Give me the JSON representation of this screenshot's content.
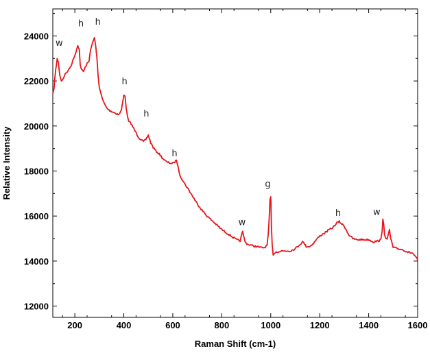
{
  "chart_data": {
    "type": "line",
    "xlabel": "Raman Shift (cm-1)",
    "ylabel": "Relative Intensity",
    "xlim": [
      110,
      1600
    ],
    "ylim": [
      11500,
      25200
    ],
    "xticks": [
      200,
      400,
      600,
      800,
      1000,
      1200,
      1400,
      1600
    ],
    "yticks": [
      12000,
      14000,
      16000,
      18000,
      20000,
      22000,
      24000
    ],
    "grid": false,
    "legend": "none",
    "line_color": "#e8141a",
    "series": [
      {
        "x": [
          110,
          115,
          118,
          122,
          128,
          133,
          138,
          145,
          152,
          160,
          168,
          175,
          185,
          195,
          205,
          212,
          218,
          222,
          228,
          235,
          242,
          250,
          258,
          265,
          272,
          280,
          285,
          290,
          295,
          300,
          306,
          312,
          320,
          330,
          340,
          350,
          360,
          370,
          380,
          390,
          400,
          405,
          410,
          415,
          420,
          430,
          440,
          450,
          460,
          470,
          480,
          490,
          500,
          510,
          520,
          530,
          545,
          560,
          575,
          590,
          605,
          615,
          622,
          630,
          645,
          660,
          680,
          700,
          720,
          740,
          760,
          780,
          800,
          820,
          840,
          860,
          875,
          885,
          890,
          895,
          905,
          920,
          940,
          960,
          975,
          985,
          990,
          994,
          997,
          1000,
          1003,
          1006,
          1010,
          1015,
          1020,
          1030,
          1045,
          1060,
          1080,
          1100,
          1115,
          1125,
          1130,
          1135,
          1145,
          1160,
          1175,
          1190,
          1205,
          1220,
          1240,
          1255,
          1270,
          1280,
          1290,
          1300,
          1310,
          1320,
          1335,
          1350,
          1365,
          1380,
          1400,
          1420,
          1440,
          1450,
          1455,
          1458,
          1461,
          1465,
          1470,
          1475,
          1480,
          1485,
          1490,
          1500,
          1520,
          1540,
          1560,
          1580,
          1590,
          1600
        ],
        "y": [
          21400,
          21700,
          22100,
          22500,
          23000,
          22800,
          22300,
          22000,
          22100,
          22300,
          22400,
          22500,
          22700,
          23000,
          23300,
          23600,
          23400,
          22700,
          22500,
          22400,
          22600,
          22800,
          22900,
          23400,
          23700,
          23900,
          23600,
          23000,
          22200,
          21700,
          21500,
          21200,
          21000,
          20800,
          20700,
          20650,
          20600,
          20550,
          20500,
          20700,
          21400,
          21300,
          20800,
          20400,
          20200,
          20100,
          19900,
          19700,
          19500,
          19400,
          19300,
          19400,
          19600,
          19250,
          19050,
          18900,
          18750,
          18550,
          18400,
          18350,
          18350,
          18500,
          18150,
          17800,
          17500,
          17250,
          16900,
          16550,
          16250,
          16000,
          15800,
          15600,
          15400,
          15250,
          15100,
          14950,
          14900,
          15300,
          15100,
          14850,
          14750,
          14700,
          14650,
          14600,
          14600,
          14700,
          15200,
          15900,
          16700,
          16850,
          15500,
          14700,
          14300,
          14350,
          14400,
          14420,
          14450,
          14450,
          14450,
          14550,
          14700,
          14800,
          14850,
          14800,
          14650,
          14650,
          14800,
          15000,
          15150,
          15250,
          15400,
          15500,
          15700,
          15750,
          15650,
          15550,
          15350,
          15150,
          15000,
          14950,
          14950,
          14950,
          14950,
          14850,
          14900,
          14950,
          15300,
          15900,
          15700,
          15200,
          15000,
          14950,
          15150,
          15400,
          15000,
          14600,
          14550,
          14500,
          14400,
          14350,
          14200,
          14050
        ]
      }
    ],
    "annotations": [
      {
        "text": "w",
        "x": 136,
        "y": 23550
      },
      {
        "text": "h",
        "x": 225,
        "y": 24420
      },
      {
        "text": "h",
        "x": 294,
        "y": 24500
      },
      {
        "text": "h",
        "x": 403,
        "y": 21850
      },
      {
        "text": "h",
        "x": 492,
        "y": 20420
      },
      {
        "text": "h",
        "x": 607,
        "y": 18650
      },
      {
        "text": "w",
        "x": 883,
        "y": 15600
      },
      {
        "text": "g",
        "x": 988,
        "y": 17300
      },
      {
        "text": "h",
        "x": 1275,
        "y": 16000
      },
      {
        "text": "w",
        "x": 1433,
        "y": 16050
      }
    ]
  }
}
